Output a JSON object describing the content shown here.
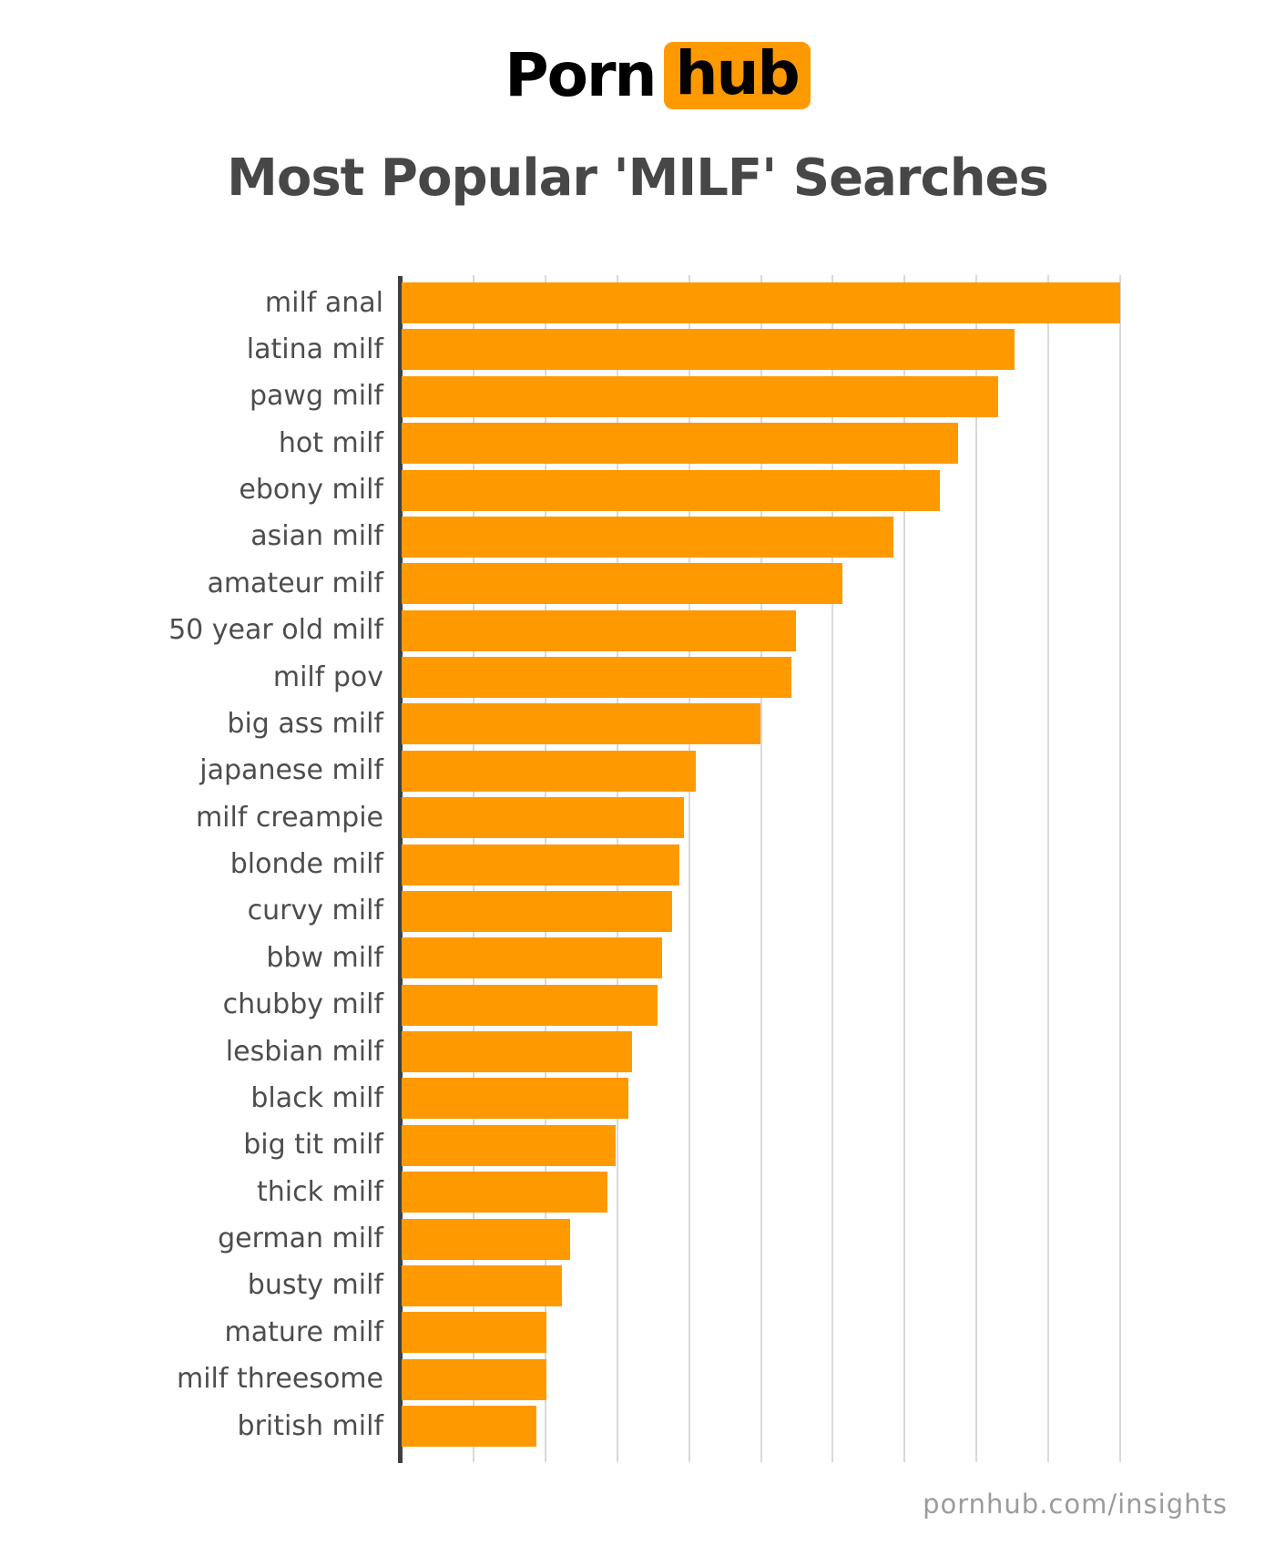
{
  "logo": {
    "porn": "Porn",
    "hub": "hub",
    "badge_color": "#ff9900"
  },
  "title": "Most Popular 'MILF' Searches",
  "footer": "pornhub.com/insights",
  "chart_data": {
    "type": "bar",
    "orientation": "horizontal",
    "title": "Most Popular 'MILF' Searches",
    "categories": [
      "milf anal",
      "latina milf",
      "pawg milf",
      "hot milf",
      "ebony milf",
      "asian milf",
      "amateur milf",
      "50 year old milf",
      "milf pov",
      "big ass milf",
      "japanese milf",
      "milf creampie",
      "blonde milf",
      "curvy milf",
      "bbw milf",
      "chubby milf",
      "lesbian milf",
      "black milf",
      "big tit milf",
      "thick milf",
      "german milf",
      "busty milf",
      "mature milf",
      "milf threesome",
      "british milf"
    ],
    "values": [
      100,
      85.3,
      83.0,
      77.4,
      74.9,
      68.5,
      61.4,
      54.9,
      54.2,
      49.9,
      40.9,
      39.3,
      38.7,
      37.6,
      36.3,
      35.6,
      32.1,
      31.5,
      29.8,
      28.7,
      23.4,
      22.3,
      20.2,
      20.1,
      18.7
    ],
    "value_note": "relative search volume (longest bar = 100, estimated from gridlines)",
    "xlim": [
      0,
      100
    ],
    "x_gridlines": [
      10,
      20,
      30,
      40,
      50,
      60,
      70,
      80,
      90,
      100
    ],
    "grid_on": true,
    "legend": false,
    "bar_color": "#ff9900",
    "axis_color": "#3f3f3f",
    "gridline_color": "#d9d9d9",
    "label_color": "#4d4d4d"
  }
}
